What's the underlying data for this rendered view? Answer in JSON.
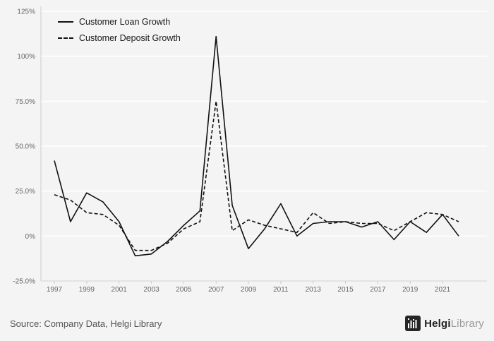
{
  "chart_data": {
    "type": "line",
    "title": "",
    "xlabel": "",
    "ylabel": "",
    "x": [
      1997,
      1998,
      1999,
      2000,
      2001,
      2002,
      2003,
      2004,
      2005,
      2006,
      2007,
      2008,
      2009,
      2010,
      2011,
      2012,
      2013,
      2014,
      2015,
      2016,
      2017,
      2018,
      2019,
      2020,
      2021,
      2022
    ],
    "series": [
      {
        "name": "Customer Loan Growth",
        "style": "solid",
        "values": [
          42,
          8,
          24,
          19,
          8,
          -11,
          -10,
          -3,
          6,
          14,
          111,
          17,
          -7,
          4,
          18,
          0,
          7,
          8,
          8,
          5,
          8,
          -2,
          8,
          2,
          12,
          0
        ]
      },
      {
        "name": "Customer Deposit Growth",
        "style": "dashed",
        "values": [
          23,
          20,
          13,
          12,
          6,
          -8,
          -8,
          -4,
          4,
          8,
          75,
          3,
          9,
          6,
          4,
          2,
          13,
          7,
          8,
          7,
          7,
          3,
          8,
          13,
          12,
          8
        ]
      }
    ],
    "ylim": [
      -25,
      125
    ],
    "y_ticks": [
      {
        "value": 125,
        "label": "125%"
      },
      {
        "value": 100,
        "label": "100%"
      },
      {
        "value": 75,
        "label": "75.0%"
      },
      {
        "value": 50,
        "label": "50.0%"
      },
      {
        "value": 25,
        "label": "25.0%"
      },
      {
        "value": 0,
        "label": "0%"
      },
      {
        "value": -25,
        "label": "-25.0%"
      }
    ],
    "x_tick_years": [
      1997,
      1999,
      2001,
      2003,
      2005,
      2007,
      2009,
      2011,
      2013,
      2015,
      2017,
      2019,
      2021
    ],
    "grid": true,
    "legend_position": "top-left",
    "line_color": "#111111",
    "grid_color": "#ffffff",
    "axis_color": "#cccccc",
    "tick_text_color": "#666666",
    "background_color": "#f4f4f4"
  },
  "footer": {
    "source": "Source: Company Data, Helgi Library",
    "logo_bold": "Helgi",
    "logo_light": "Library"
  }
}
